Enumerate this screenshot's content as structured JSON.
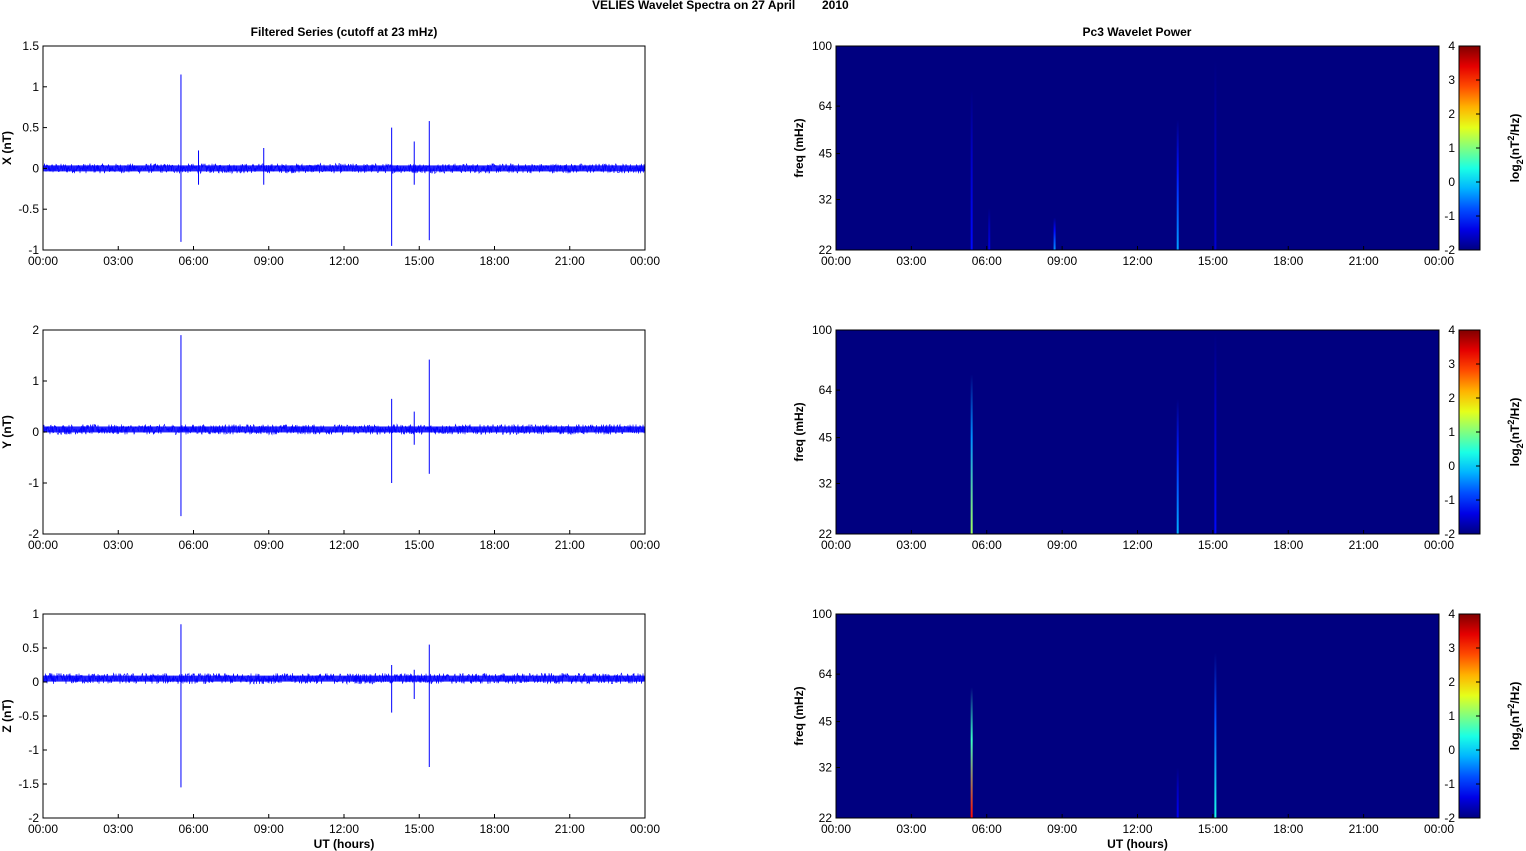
{
  "figure": {
    "title_main": "VELIES Wavelet Spectra on 27 April",
    "title_year": "2010",
    "left_title": "Filtered Series (cutoff at 23 mHz)",
    "right_title": "Pc3 Wavelet Power"
  },
  "chart_data": [
    {
      "type": "line",
      "title": "Filtered Series (cutoff at 23 mHz)",
      "component": "X",
      "ylabel": "X (nT)",
      "xlabel": "",
      "x_ticks": [
        "00:00",
        "03:00",
        "06:00",
        "09:00",
        "12:00",
        "15:00",
        "18:00",
        "21:00",
        "00:00"
      ],
      "xlim_hours": [
        0,
        24
      ],
      "ylim": [
        -1,
        1.5
      ],
      "y_ticks": [
        1.5,
        1,
        0.5,
        0,
        -0.5,
        -1
      ],
      "y_tick_labels": [
        "1.5",
        "1",
        "0.5",
        "0",
        "-0.5",
        "-1"
      ],
      "color": "#0000ff",
      "baseline": 0.0,
      "noise_amplitude": 0.06,
      "spikes": [
        {
          "x_hours": 5.5,
          "min": -0.9,
          "max": 1.15
        },
        {
          "x_hours": 6.2,
          "min": -0.2,
          "max": 0.22
        },
        {
          "x_hours": 8.8,
          "min": -0.2,
          "max": 0.25
        },
        {
          "x_hours": 13.9,
          "min": -0.95,
          "max": 0.5
        },
        {
          "x_hours": 14.8,
          "min": -0.2,
          "max": 0.33
        },
        {
          "x_hours": 15.4,
          "min": -0.88,
          "max": 0.58
        }
      ]
    },
    {
      "type": "line",
      "component": "Y",
      "ylabel": "Y (nT)",
      "xlabel": "",
      "x_ticks": [
        "00:00",
        "03:00",
        "06:00",
        "09:00",
        "12:00",
        "15:00",
        "18:00",
        "21:00",
        "00:00"
      ],
      "xlim_hours": [
        0,
        24
      ],
      "ylim": [
        -2,
        2
      ],
      "y_ticks": [
        2,
        1,
        0,
        -1,
        -2
      ],
      "y_tick_labels": [
        "2",
        "1",
        "0",
        "-1",
        "-2"
      ],
      "color": "#0000ff",
      "baseline": 0.05,
      "noise_amplitude": 0.1,
      "spikes": [
        {
          "x_hours": 5.5,
          "min": -1.65,
          "max": 1.9
        },
        {
          "x_hours": 13.9,
          "min": -1.0,
          "max": 0.65
        },
        {
          "x_hours": 14.8,
          "min": -0.25,
          "max": 0.4
        },
        {
          "x_hours": 15.4,
          "min": -0.82,
          "max": 1.42
        }
      ]
    },
    {
      "type": "line",
      "component": "Z",
      "ylabel": "Z (nT)",
      "xlabel": "UT (hours)",
      "x_ticks": [
        "00:00",
        "03:00",
        "06:00",
        "09:00",
        "12:00",
        "15:00",
        "18:00",
        "21:00",
        "00:00"
      ],
      "xlim_hours": [
        0,
        24
      ],
      "ylim": [
        -2,
        1
      ],
      "y_ticks": [
        1,
        0.5,
        0,
        -0.5,
        -1,
        -1.5,
        -2
      ],
      "y_tick_labels": [
        "1",
        "0.5",
        "0",
        "-0.5",
        "-1",
        "-1.5",
        "-2"
      ],
      "color": "#0000ff",
      "baseline": 0.05,
      "noise_amplitude": 0.08,
      "spikes": [
        {
          "x_hours": 5.5,
          "min": -1.55,
          "max": 0.85
        },
        {
          "x_hours": 13.9,
          "min": -0.45,
          "max": 0.25
        },
        {
          "x_hours": 14.8,
          "min": -0.25,
          "max": 0.18
        },
        {
          "x_hours": 15.4,
          "min": -1.25,
          "max": 0.55
        }
      ]
    },
    {
      "type": "heatmap",
      "title": "Pc3 Wavelet Power",
      "component": "X",
      "ylabel": "freq (mHz)",
      "xlabel": "",
      "x_ticks": [
        "00:00",
        "03:00",
        "06:00",
        "09:00",
        "12:00",
        "15:00",
        "18:00",
        "21:00",
        "00:00"
      ],
      "xlim_hours": [
        0,
        24
      ],
      "y_scale": "log",
      "ylim": [
        22,
        100
      ],
      "y_ticks": [
        100,
        64,
        45,
        32,
        22
      ],
      "background_value": -2,
      "colorbar": {
        "label": "log2(nT^2/Hz)",
        "range": [
          -2,
          4
        ],
        "ticks": [
          4,
          3,
          2,
          1,
          0,
          -1,
          -2
        ]
      },
      "features": [
        {
          "x_hours": 5.4,
          "f_min": 22,
          "f_max": 72,
          "peak": -1.2
        },
        {
          "x_hours": 6.1,
          "f_min": 22,
          "f_max": 30,
          "peak": -1.4
        },
        {
          "x_hours": 8.7,
          "f_min": 22,
          "f_max": 28,
          "peak": -0.4
        },
        {
          "x_hours": 13.6,
          "f_min": 22,
          "f_max": 58,
          "peak": -0.3
        },
        {
          "x_hours": 15.1,
          "f_min": 22,
          "f_max": 90,
          "peak": -1.5
        }
      ]
    },
    {
      "type": "heatmap",
      "component": "Y",
      "ylabel": "freq (mHz)",
      "xlabel": "",
      "x_ticks": [
        "00:00",
        "03:00",
        "06:00",
        "09:00",
        "12:00",
        "15:00",
        "18:00",
        "21:00",
        "00:00"
      ],
      "xlim_hours": [
        0,
        24
      ],
      "y_scale": "log",
      "ylim": [
        22,
        100
      ],
      "y_ticks": [
        100,
        64,
        45,
        32,
        22
      ],
      "background_value": -2,
      "colorbar": {
        "label": "log2(nT^2/Hz)",
        "range": [
          -2,
          4
        ],
        "ticks": [
          4,
          3,
          2,
          1,
          0,
          -1,
          -2
        ]
      },
      "features": [
        {
          "x_hours": 5.4,
          "f_min": 22,
          "f_max": 72,
          "peak": 1.2
        },
        {
          "x_hours": 13.6,
          "f_min": 22,
          "f_max": 60,
          "peak": -0.2
        },
        {
          "x_hours": 15.1,
          "f_min": 22,
          "f_max": 98,
          "peak": -1.2
        }
      ]
    },
    {
      "type": "heatmap",
      "component": "Z",
      "ylabel": "freq (mHz)",
      "xlabel": "UT (hours)",
      "x_ticks": [
        "00:00",
        "03:00",
        "06:00",
        "09:00",
        "12:00",
        "15:00",
        "18:00",
        "21:00",
        "00:00"
      ],
      "xlim_hours": [
        0,
        24
      ],
      "y_scale": "log",
      "ylim": [
        22,
        100
      ],
      "y_ticks": [
        100,
        64,
        45,
        32,
        22
      ],
      "background_value": -2,
      "colorbar": {
        "label": "log2(nT^2/Hz)",
        "range": [
          -2,
          4
        ],
        "ticks": [
          4,
          3,
          2,
          1,
          0,
          -1,
          -2
        ]
      },
      "features": [
        {
          "x_hours": 5.4,
          "f_min": 22,
          "f_max": 58,
          "peak": 3.2
        },
        {
          "x_hours": 13.6,
          "f_min": 22,
          "f_max": 32,
          "peak": -1.3
        },
        {
          "x_hours": 15.1,
          "f_min": 22,
          "f_max": 75,
          "peak": 0.4
        }
      ]
    }
  ]
}
